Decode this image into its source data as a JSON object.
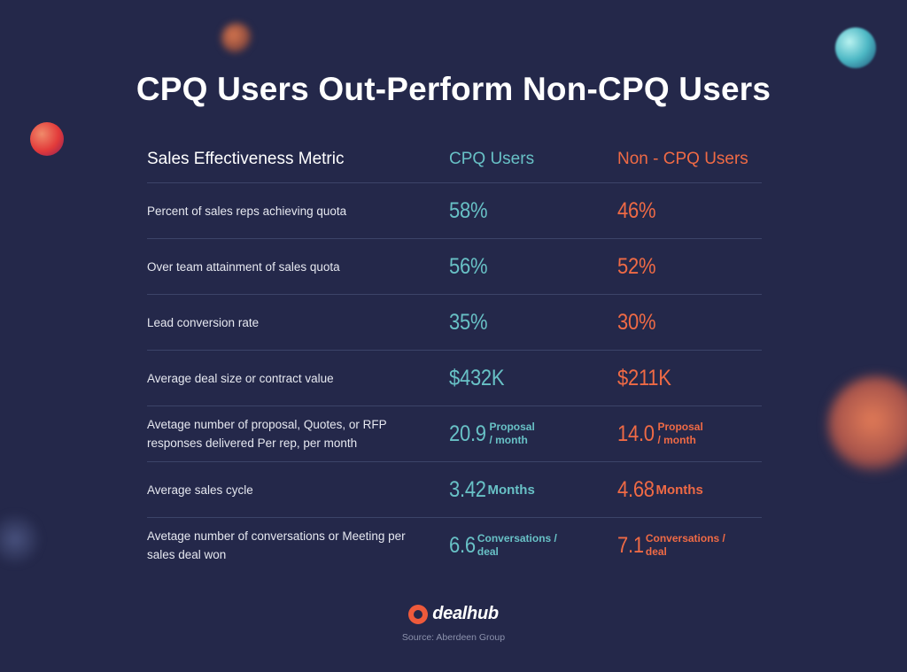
{
  "title": "CPQ Users Out-Perform Non-CPQ Users",
  "colors": {
    "background": "#24284a",
    "cpq": "#68c1c6",
    "non_cpq": "#ef6a45",
    "divider": "#3c4468"
  },
  "table": {
    "headers": {
      "metric": "Sales Effectiveness Metric",
      "cpq": "CPQ Users",
      "non_cpq": "Non - CPQ Users"
    },
    "rows": [
      {
        "metric": "Percent of sales reps achieving quota",
        "cpq": {
          "value": "58%",
          "unit": ""
        },
        "non_cpq": {
          "value": "46%",
          "unit": ""
        }
      },
      {
        "metric": "Over team attainment of sales quota",
        "cpq": {
          "value": "56%",
          "unit": ""
        },
        "non_cpq": {
          "value": "52%",
          "unit": ""
        }
      },
      {
        "metric": "Lead conversion rate",
        "cpq": {
          "value": "35%",
          "unit": ""
        },
        "non_cpq": {
          "value": "30%",
          "unit": ""
        }
      },
      {
        "metric": "Average deal size or contract value",
        "cpq": {
          "value": "$432K",
          "unit": ""
        },
        "non_cpq": {
          "value": "$211K",
          "unit": ""
        }
      },
      {
        "metric": "Avetage number of proposal, Quotes, or RFP responses delivered Per rep, per month",
        "cpq": {
          "value": "20.9",
          "unit_line1": "Proposal",
          "unit_line2": "/ month"
        },
        "non_cpq": {
          "value": "14.0",
          "unit_line1": "Proposal",
          "unit_line2": "/ month"
        }
      },
      {
        "metric": "Average sales cycle",
        "cpq": {
          "value": "3.42",
          "unit": "Months"
        },
        "non_cpq": {
          "value": "4.68",
          "unit": "Months"
        }
      },
      {
        "metric": "Avetage number of conversations or Meeting per sales deal won",
        "cpq": {
          "value": "6.6",
          "unit_line1": "Conversations /",
          "unit_line2": "deal"
        },
        "non_cpq": {
          "value": "7.1",
          "unit_line1": "Conversations /",
          "unit_line2": "deal"
        }
      }
    ]
  },
  "brand": {
    "name": "dealhub",
    "logo_icon": "dealhub-logo-icon"
  },
  "source": "Source: Aberdeen Group"
}
